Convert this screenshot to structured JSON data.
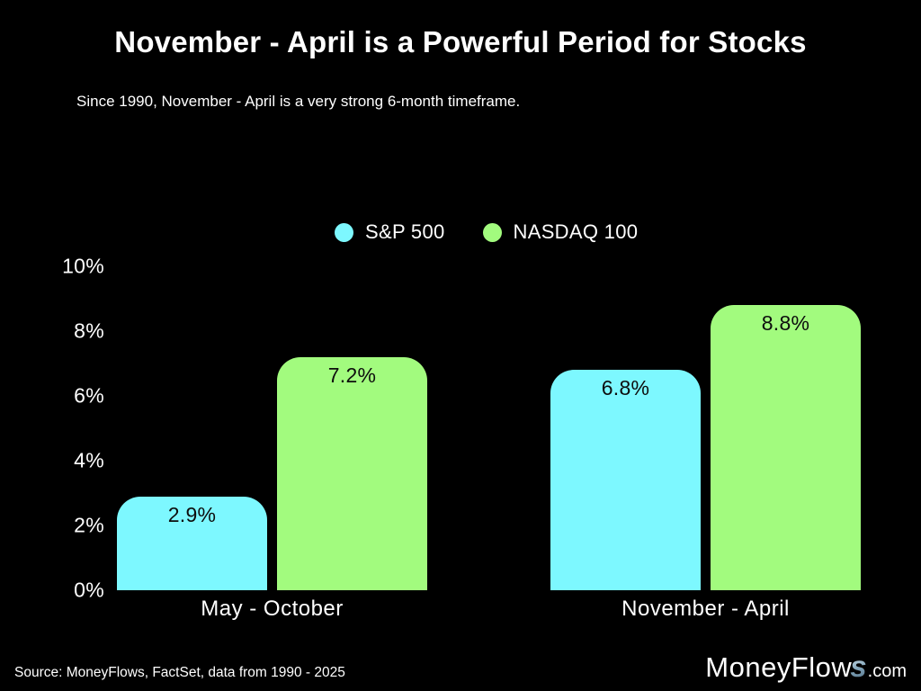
{
  "page": {
    "background": "#000000",
    "title": "November - April is a Powerful Period for Stocks",
    "subtitle": "Since 1990, November - April is a very strong 6-month timeframe.",
    "source": "Source: MoneyFlows, FactSet, data from 1990 - 2025",
    "logo": {
      "main": "MoneyFlow",
      "s": "s",
      "suffix": ".com"
    }
  },
  "chart_data": {
    "type": "bar",
    "categories": [
      "May - October",
      "November - April"
    ],
    "series": [
      {
        "name": "S&P 500",
        "color": "#7df8ff",
        "values": [
          2.9,
          6.8
        ]
      },
      {
        "name": "NASDAQ 100",
        "color": "#a2fb7e",
        "values": [
          7.2,
          8.8
        ]
      }
    ],
    "value_label_format": "percent_one_decimal",
    "value_labels": [
      [
        "2.9%",
        "6.8%"
      ],
      [
        "7.2%",
        "8.8%"
      ]
    ],
    "ytick_values": [
      0,
      2,
      4,
      6,
      8,
      10
    ],
    "ytick_labels": [
      "0%",
      "2%",
      "4%",
      "6%",
      "8%",
      "10%"
    ],
    "ylim": [
      0,
      10
    ],
    "grid": false,
    "axis_lines": false,
    "legend_position": "top-center",
    "bar_label_position": "inside-top",
    "bar_label_color": "#0d0d0d"
  }
}
